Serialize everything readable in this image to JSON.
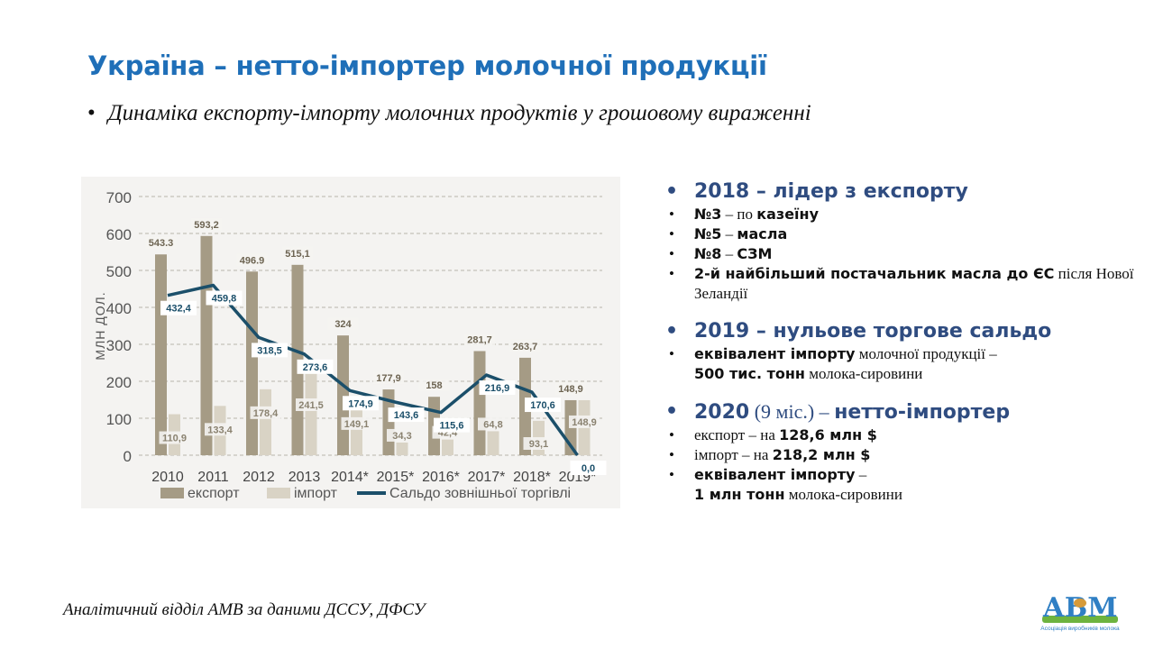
{
  "title": "Україна – нетто-імпортер молочної продукції",
  "subtitle": "Динаміка експорту-імпорту молочних продуктів у грошовому вираженні",
  "chart_data": {
    "type": "bar",
    "ylabel": "МЛН ДОЛ.",
    "ylim": [
      0,
      700
    ],
    "yticks": [
      "0",
      "100",
      "200",
      "300",
      "400",
      "500",
      "600",
      "700"
    ],
    "categories": [
      "2010",
      "2011",
      "2012",
      "2013",
      "2014*",
      "2015*",
      "2016*",
      "2017*",
      "2018*",
      "2019*"
    ],
    "grid": true,
    "legend_position": "bottom",
    "series": [
      {
        "name": "експорт",
        "kind": "bar",
        "color": "#a59b85",
        "values": [
          543.3,
          593.2,
          496.9,
          515.1,
          324,
          177.9,
          158,
          281.7,
          263.7,
          148.9
        ],
        "labels": [
          "543.3",
          "593,2",
          "496.9",
          "515,1",
          "324",
          "177,9",
          "158",
          "281,7",
          "263,7",
          "148,9"
        ]
      },
      {
        "name": "імпорт",
        "kind": "bar",
        "color": "#d9d3c5",
        "values": [
          110.9,
          133.4,
          178.4,
          241.5,
          149.1,
          34.3,
          42.4,
          64.8,
          93.1,
          148.9
        ],
        "labels": [
          "110,9",
          "133,4",
          "178,4",
          "241,5",
          "149,1",
          "34,3",
          "42,4",
          "64,8",
          "93,1",
          "148,9"
        ]
      },
      {
        "name": "Сальдо зовнішньої торгівлі",
        "kind": "line",
        "color": "#1b4f6a",
        "values": [
          432.4,
          459.8,
          318.5,
          273.6,
          174.9,
          143.6,
          115.6,
          216.9,
          170.6,
          0.0
        ],
        "labels": [
          "432,4",
          "459,8",
          "318,5",
          "273,6",
          "174,9",
          "143,6",
          "115,6",
          "216,9",
          "170,6",
          "0,0"
        ]
      }
    ]
  },
  "sections": [
    {
      "head": "2018 – лідер з експорту",
      "head_plain": "",
      "head_tail": "",
      "items": [
        [
          {
            "t": "№3",
            "b": true
          },
          {
            "t": " – по ",
            "b": false
          },
          {
            "t": "казеїну",
            "b": true
          }
        ],
        [
          {
            "t": "№5",
            "b": true
          },
          {
            "t": " – ",
            "b": false
          },
          {
            "t": "масла",
            "b": true
          }
        ],
        [
          {
            "t": "№8",
            "b": true
          },
          {
            "t": " – ",
            "b": false
          },
          {
            "t": "СЗМ",
            "b": true
          }
        ],
        [
          {
            "t": "2-й найбільший постачальник масла до ЄС",
            "b": true
          },
          {
            "t": " після Нової Зеландії",
            "b": false
          }
        ]
      ]
    },
    {
      "head": "2019 – нульове торгове сальдо",
      "head_plain": "",
      "head_tail": "",
      "items": [
        [
          {
            "t": "еквівалент імпорту",
            "b": true
          },
          {
            "t": " молочної продукції –",
            "b": false
          },
          {
            "t": "500 тис. тонн",
            "b": true,
            "br": true
          },
          {
            "t": " молока-сировини",
            "b": false
          }
        ]
      ]
    },
    {
      "head": "2020",
      "head_plain": " (9 міс.) – ",
      "head_tail": "нетто-імпортер",
      "items": [
        [
          {
            "t": "експорт – на ",
            "b": false
          },
          {
            "t": "128,6 млн $",
            "b": true
          }
        ],
        [
          {
            "t": "імпорт – на ",
            "b": false
          },
          {
            "t": "218,2 млн $",
            "b": true
          }
        ],
        [
          {
            "t": "еквівалент імпорту",
            "b": true
          },
          {
            "t": " –",
            "b": false
          },
          {
            "t": "1 млн тонн",
            "b": true,
            "br": true
          },
          {
            "t": " молока-сировини",
            "b": false
          }
        ]
      ]
    }
  ],
  "source": "Аналітичний відділ АМВ за даними ДССУ, ДФСУ",
  "logo": {
    "text": "АВМ",
    "caption": "Асоціація виробників молока",
    "colors": [
      "#2f7fc4",
      "#6db33f",
      "#d69a3a"
    ]
  }
}
